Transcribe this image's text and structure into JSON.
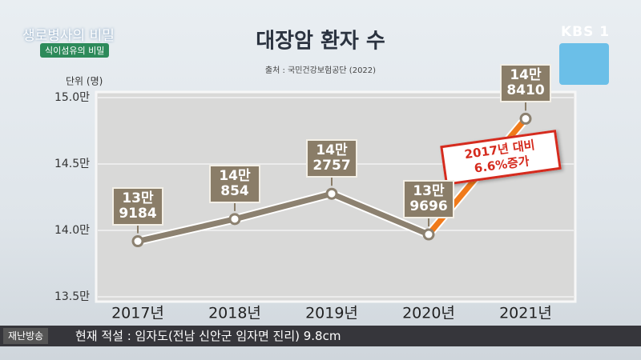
{
  "chart_data": {
    "type": "line",
    "title": "대장암 환자 수",
    "subtitle": "출처 : 국민건강보험공단 (2022)",
    "y_label": "단위 (명)",
    "categories": [
      "2017년",
      "2018년",
      "2019년",
      "2020년",
      "2021년"
    ],
    "series": [
      {
        "name": "대장암 환자 수",
        "color": "#8c8170",
        "highlight_color": "#f07a1a",
        "values": [
          139184,
          140854,
          142757,
          139696,
          148410
        ],
        "value_labels": [
          "13만\n9184",
          "14만\n854",
          "14만\n2757",
          "13만\n9696",
          "14만\n8410"
        ]
      }
    ],
    "ylim": [
      135000,
      150000
    ],
    "yticks": [
      {
        "value": 135000,
        "label": "13.5만"
      },
      {
        "value": 140000,
        "label": "14.0만"
      },
      {
        "value": 145000,
        "label": "14.5만"
      },
      {
        "value": 150000,
        "label": "15.0만"
      }
    ],
    "grid": true,
    "annotation": "2017년 대비\n6.6%증가"
  },
  "overlay": {
    "program": "생로병사의 비밀",
    "episode": "식이섬유의 비밀",
    "channel": "KBS 1",
    "ticker_label": "재난방송",
    "ticker_text": "현재 적설 : 임자도(전남 신안군 임자면 진리) 9.8cm"
  }
}
